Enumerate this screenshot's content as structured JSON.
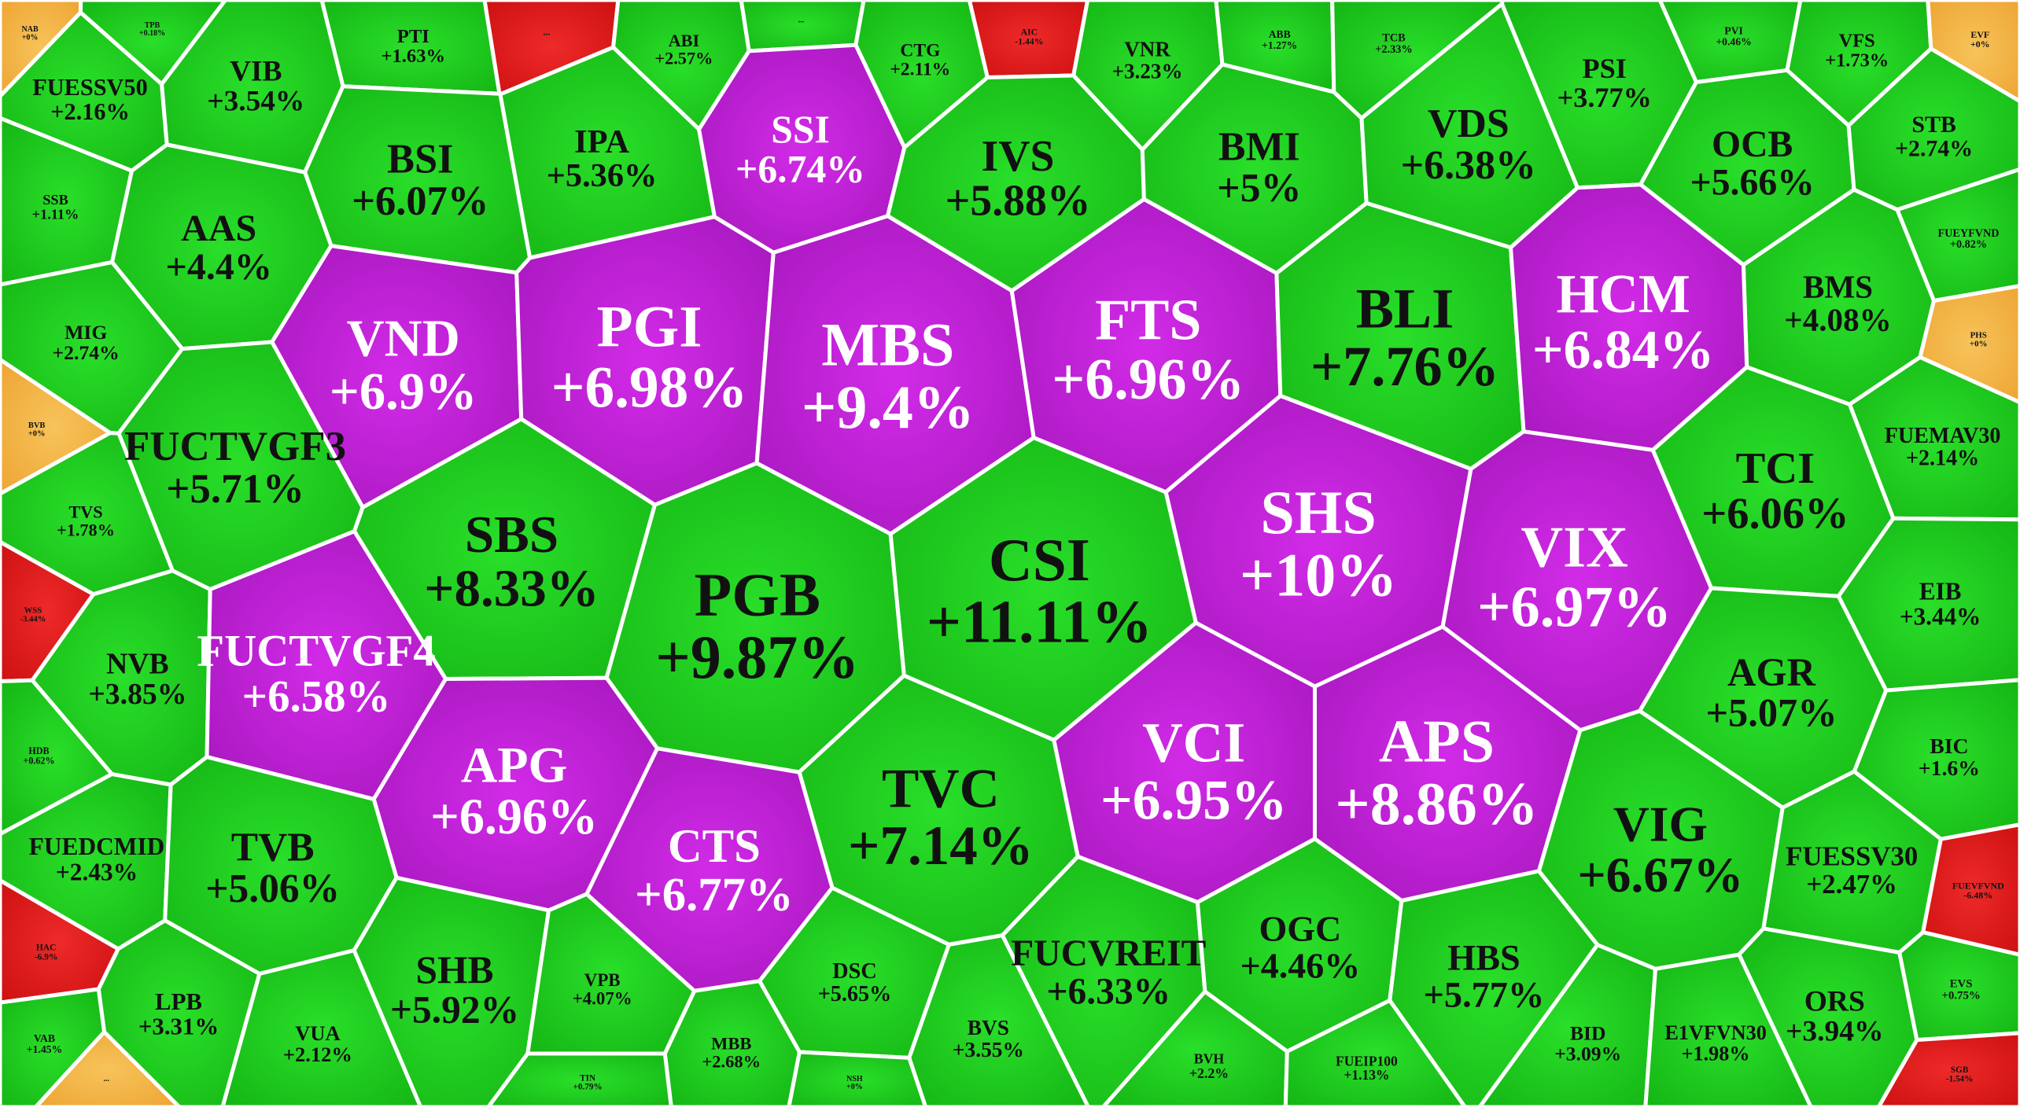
{
  "chart_data": {
    "type": "voronoi-treemap",
    "title": "",
    "colors": {
      "ceiling": "#b81ecf",
      "up": "#1fcc1f",
      "flat": "#f2b440",
      "down": "#e01818",
      "border": "#ffffff"
    },
    "cells": [
      {
        "ticker": "NAB",
        "change": "+0%",
        "status": "flat"
      },
      {
        "ticker": "TPB",
        "change": "+0.18%",
        "status": "up"
      },
      {
        "ticker": "PTI",
        "change": "+1.63%",
        "status": "up"
      },
      {
        "ticker": "...",
        "change": "",
        "status": "down"
      },
      {
        "ticker": "ABI",
        "change": "+2.57%",
        "status": "up"
      },
      {
        "ticker": "...",
        "change": "",
        "status": "up"
      },
      {
        "ticker": "CTG",
        "change": "+2.11%",
        "status": "up"
      },
      {
        "ticker": "AIC",
        "change": "-1.44%",
        "status": "down"
      },
      {
        "ticker": "VNR",
        "change": "+3.23%",
        "status": "up"
      },
      {
        "ticker": "ABB",
        "change": "+1.27%",
        "status": "up"
      },
      {
        "ticker": "TCB",
        "change": "+2.33%",
        "status": "up"
      },
      {
        "ticker": "PSI",
        "change": "+3.77%",
        "status": "up"
      },
      {
        "ticker": "PVI",
        "change": "+0.46%",
        "status": "up"
      },
      {
        "ticker": "VFS",
        "change": "+1.73%",
        "status": "up"
      },
      {
        "ticker": "EVF",
        "change": "+0%",
        "status": "flat"
      },
      {
        "ticker": "FUESSV50",
        "change": "+2.16%",
        "status": "up"
      },
      {
        "ticker": "VIB",
        "change": "+3.54%",
        "status": "up"
      },
      {
        "ticker": "IPA",
        "change": "+5.36%",
        "status": "up"
      },
      {
        "ticker": "SSI",
        "change": "+6.74%",
        "status": "ceiling"
      },
      {
        "ticker": "IVS",
        "change": "+5.88%",
        "status": "up"
      },
      {
        "ticker": "BMI",
        "change": "+5%",
        "status": "up"
      },
      {
        "ticker": "VDS",
        "change": "+6.38%",
        "status": "up"
      },
      {
        "ticker": "OCB",
        "change": "+5.66%",
        "status": "up"
      },
      {
        "ticker": "STB",
        "change": "+2.74%",
        "status": "up"
      },
      {
        "ticker": "BSI",
        "change": "+6.07%",
        "status": "up"
      },
      {
        "ticker": "SSB",
        "change": "+1.11%",
        "status": "up"
      },
      {
        "ticker": "AAS",
        "change": "+4.4%",
        "status": "up"
      },
      {
        "ticker": "FUEYFVND",
        "change": "+0.82%",
        "status": "up"
      },
      {
        "ticker": "BMS",
        "change": "+4.08%",
        "status": "up"
      },
      {
        "ticker": "MIG",
        "change": "+2.74%",
        "status": "up"
      },
      {
        "ticker": "VND",
        "change": "+6.9%",
        "status": "ceiling"
      },
      {
        "ticker": "PGI",
        "change": "+6.98%",
        "status": "ceiling"
      },
      {
        "ticker": "MBS",
        "change": "+9.4%",
        "status": "ceiling"
      },
      {
        "ticker": "FTS",
        "change": "+6.96%",
        "status": "ceiling"
      },
      {
        "ticker": "BLI",
        "change": "+7.76%",
        "status": "up"
      },
      {
        "ticker": "HCM",
        "change": "+6.84%",
        "status": "ceiling"
      },
      {
        "ticker": "PHS",
        "change": "+0%",
        "status": "flat"
      },
      {
        "ticker": "BVB",
        "change": "+0%",
        "status": "flat"
      },
      {
        "ticker": "FUCTVGF3",
        "change": "+5.71%",
        "status": "up"
      },
      {
        "ticker": "FUEMAV30",
        "change": "+2.14%",
        "status": "up"
      },
      {
        "ticker": "TVS",
        "change": "+1.78%",
        "status": "up"
      },
      {
        "ticker": "SBS",
        "change": "+8.33%",
        "status": "up"
      },
      {
        "ticker": "SHS",
        "change": "+10%",
        "status": "ceiling"
      },
      {
        "ticker": "TCI",
        "change": "+6.06%",
        "status": "up"
      },
      {
        "ticker": "CSI",
        "change": "+11.11%",
        "status": "up"
      },
      {
        "ticker": "VIX",
        "change": "+6.97%",
        "status": "ceiling"
      },
      {
        "ticker": "PGB",
        "change": "+9.87%",
        "status": "up"
      },
      {
        "ticker": "WSS",
        "change": "-3.44%",
        "status": "down"
      },
      {
        "ticker": "EIB",
        "change": "+3.44%",
        "status": "up"
      },
      {
        "ticker": "NVB",
        "change": "+3.85%",
        "status": "up"
      },
      {
        "ticker": "FUCTVGF4",
        "change": "+6.58%",
        "status": "ceiling"
      },
      {
        "ticker": "AGR",
        "change": "+5.07%",
        "status": "up"
      },
      {
        "ticker": "HDB",
        "change": "+0.62%",
        "status": "up"
      },
      {
        "ticker": "BIC",
        "change": "+1.6%",
        "status": "up"
      },
      {
        "ticker": "VCI",
        "change": "+6.95%",
        "status": "ceiling"
      },
      {
        "ticker": "APS",
        "change": "+8.86%",
        "status": "ceiling"
      },
      {
        "ticker": "APG",
        "change": "+6.96%",
        "status": "ceiling"
      },
      {
        "ticker": "FUEDCMID",
        "change": "+2.43%",
        "status": "up"
      },
      {
        "ticker": "TVB",
        "change": "+5.06%",
        "status": "up"
      },
      {
        "ticker": "TVC",
        "change": "+7.14%",
        "status": "up"
      },
      {
        "ticker": "VIG",
        "change": "+6.67%",
        "status": "up"
      },
      {
        "ticker": "FUESSV30",
        "change": "+2.47%",
        "status": "up"
      },
      {
        "ticker": "CTS",
        "change": "+6.77%",
        "status": "ceiling"
      },
      {
        "ticker": "FUEVFVND",
        "change": "-6.48%",
        "status": "down"
      },
      {
        "ticker": "HAC",
        "change": "-6.9%",
        "status": "down"
      },
      {
        "ticker": "SHB",
        "change": "+5.92%",
        "status": "up"
      },
      {
        "ticker": "FUCVREIT",
        "change": "+6.33%",
        "status": "up"
      },
      {
        "ticker": "OGC",
        "change": "+4.46%",
        "status": "up"
      },
      {
        "ticker": "HBS",
        "change": "+5.77%",
        "status": "up"
      },
      {
        "ticker": "ORS",
        "change": "+3.94%",
        "status": "up"
      },
      {
        "ticker": "EVS",
        "change": "+0.75%",
        "status": "up"
      },
      {
        "ticker": "DSC",
        "change": "+5.65%",
        "status": "up"
      },
      {
        "ticker": "VPB",
        "change": "+4.07%",
        "status": "up"
      },
      {
        "ticker": "LPB",
        "change": "+3.31%",
        "status": "up"
      },
      {
        "ticker": "VAB",
        "change": "+1.45%",
        "status": "up"
      },
      {
        "ticker": "VUA",
        "change": "+2.12%",
        "status": "up"
      },
      {
        "ticker": "MBB",
        "change": "+2.68%",
        "status": "up"
      },
      {
        "ticker": "BVS",
        "change": "+3.55%",
        "status": "up"
      },
      {
        "ticker": "BVH",
        "change": "+2.2%",
        "status": "up"
      },
      {
        "ticker": "FUEIP100",
        "change": "+1.13%",
        "status": "up"
      },
      {
        "ticker": "BID",
        "change": "+3.09%",
        "status": "up"
      },
      {
        "ticker": "E1VFVN30",
        "change": "+1.98%",
        "status": "up"
      },
      {
        "ticker": "SGB",
        "change": "-1.54%",
        "status": "down"
      },
      {
        "ticker": "TIN",
        "change": "+0.79%",
        "status": "up"
      },
      {
        "ticker": "NSH",
        "change": "+0%",
        "status": "up"
      },
      {
        "ticker": "...",
        "change": "",
        "status": "flat"
      }
    ]
  }
}
